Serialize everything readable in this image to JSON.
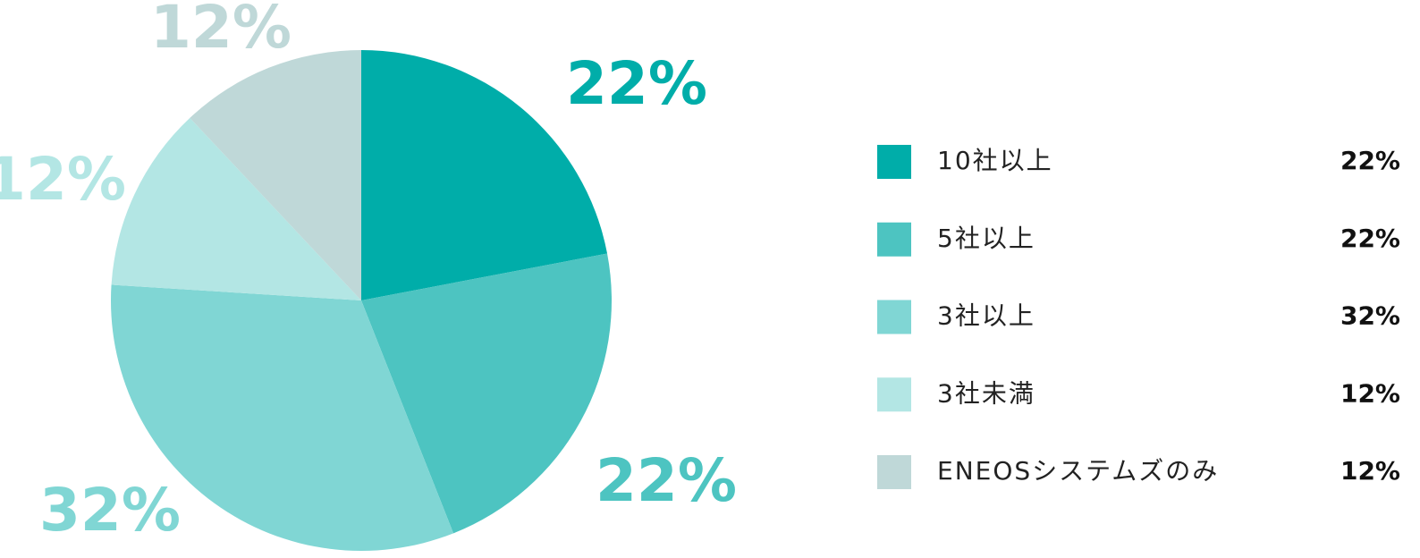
{
  "chart_data": {
    "type": "pie",
    "categories": [
      "10社以上",
      "5社以上",
      "3社以上",
      "3社未満",
      "ENEOSシステムズのみ"
    ],
    "values": [
      22,
      22,
      32,
      12,
      12
    ],
    "value_labels": [
      "22%",
      "22%",
      "32%",
      "12%",
      "12%"
    ],
    "colors": [
      "#00ada9",
      "#4dc4c1",
      "#80d6d4",
      "#b3e6e4",
      "#bfd8d8"
    ],
    "legend": "right"
  }
}
